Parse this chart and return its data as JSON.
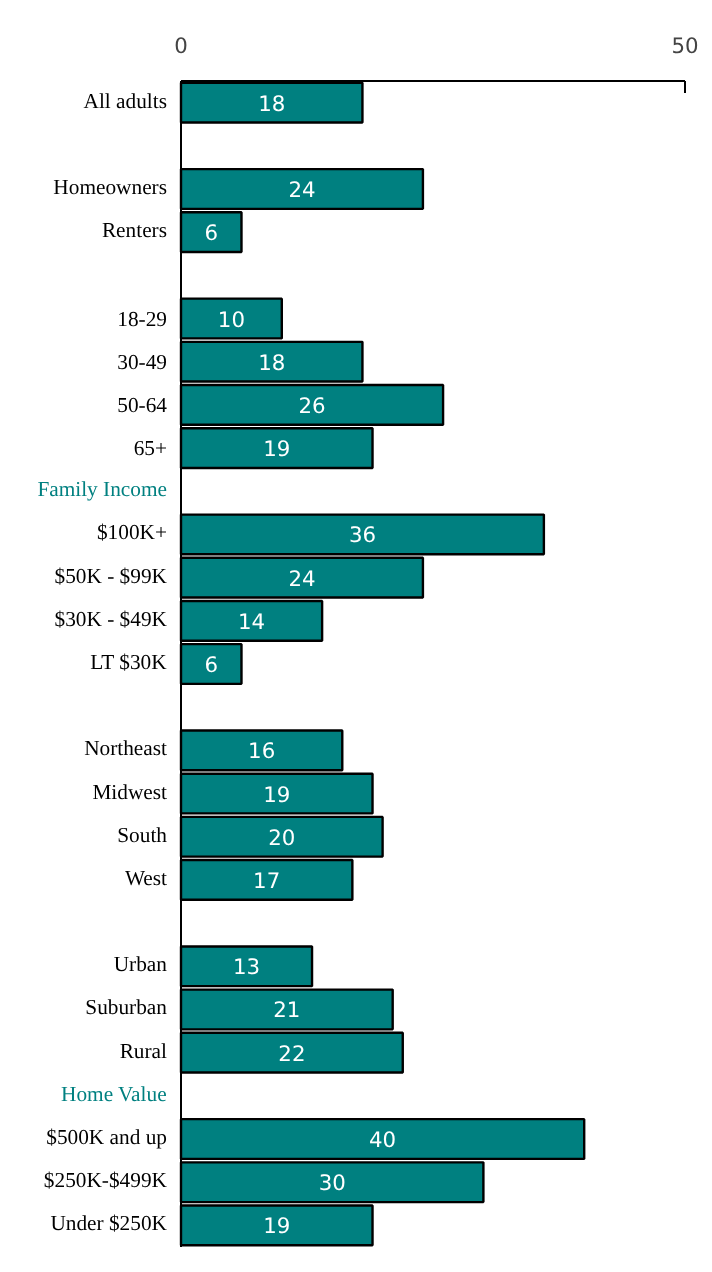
{
  "chart_data": {
    "type": "bar",
    "orientation": "horizontal",
    "data_labels": true,
    "categories": [
      "All adults",
      null,
      "Homeowners",
      "Renters",
      null,
      "18-29",
      "30-49",
      "50-64",
      "65+",
      "Family Income",
      "$100K+",
      "$50K - $99K",
      "$30K - $49K",
      "LT $30K",
      null,
      "Northeast",
      "Midwest",
      "South",
      "West",
      null,
      "Urban",
      "Suburban",
      "Rural",
      "Home Value",
      "$500K and up",
      "$250K-$499K",
      "Under $250K"
    ],
    "values": [
      18,
      null,
      24,
      6,
      null,
      10,
      18,
      26,
      19,
      null,
      36,
      24,
      14,
      6,
      null,
      16,
      19,
      20,
      17,
      null,
      13,
      21,
      22,
      null,
      40,
      30,
      19
    ],
    "color": "#008080",
    "xlim": [
      0,
      50
    ],
    "xticks": [
      0,
      50
    ]
  }
}
